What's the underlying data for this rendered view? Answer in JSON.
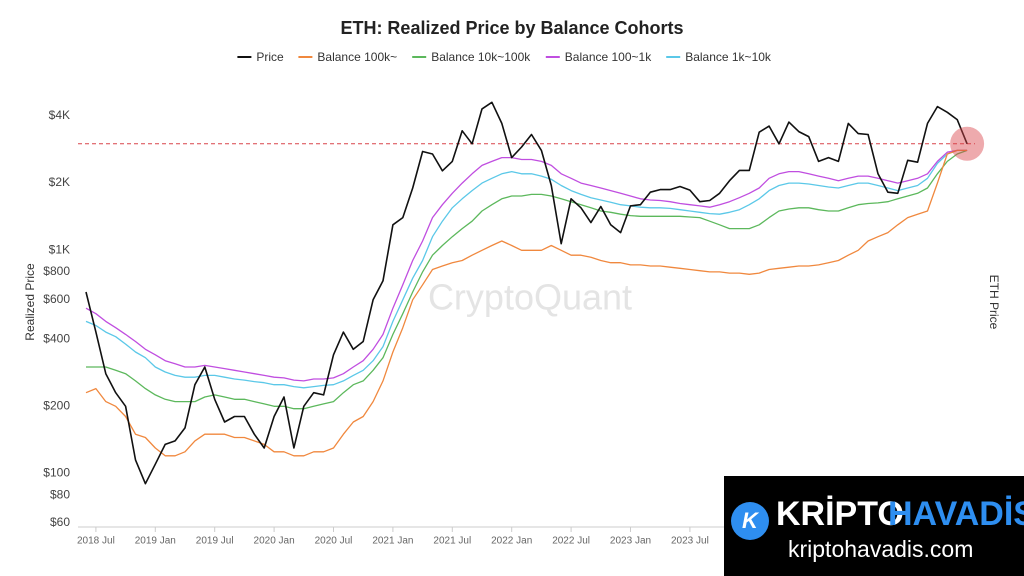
{
  "chart_data": {
    "type": "line",
    "title": "ETH: Realized Price by Balance Cohorts",
    "y_label": "Realized Price",
    "y2_label": "ETH Price",
    "watermark": "CryptoQuant",
    "log_scale": true,
    "grid": false,
    "legend": "top",
    "x": [
      "2018 Jun",
      "2018 Jul",
      "2018 Aug",
      "2018 Sep",
      "2018 Oct",
      "2018 Nov",
      "2018 Dec",
      "2019 Jan",
      "2019 Feb",
      "2019 Mar",
      "2019 Apr",
      "2019 May",
      "2019 Jun",
      "2019 Jul",
      "2019 Aug",
      "2019 Sep",
      "2019 Oct",
      "2019 Nov",
      "2019 Dec",
      "2020 Jan",
      "2020 Feb",
      "2020 Mar",
      "2020 Apr",
      "2020 May",
      "2020 Jun",
      "2020 Jul",
      "2020 Aug",
      "2020 Sep",
      "2020 Oct",
      "2020 Nov",
      "2020 Dec",
      "2021 Jan",
      "2021 Feb",
      "2021 Mar",
      "2021 Apr",
      "2021 May",
      "2021 Jun",
      "2021 Jul",
      "2021 Aug",
      "2021 Sep",
      "2021 Oct",
      "2021 Nov",
      "2021 Dec",
      "2022 Jan",
      "2022 Feb",
      "2022 Mar",
      "2022 Apr",
      "2022 May",
      "2022 Jun",
      "2022 Jul",
      "2022 Aug",
      "2022 Sep",
      "2022 Oct",
      "2022 Nov",
      "2022 Dec",
      "2023 Jan",
      "2023 Feb",
      "2023 Mar",
      "2023 Apr",
      "2023 May",
      "2023 Jun",
      "2023 Jul",
      "2023 Aug",
      "2023 Sep",
      "2023 Oct",
      "2023 Nov",
      "2023 Dec",
      "2024 Jan",
      "2024 Feb",
      "2024 Mar",
      "2024 Apr",
      "2024 May",
      "2024 Jun",
      "2024 Jul",
      "2024 Aug",
      "2024 Sep",
      "2024 Oct",
      "2024 Nov",
      "2024 Dec",
      "2025 Jan",
      "2025 Feb",
      "2025 Mar",
      "2025 Apr",
      "2025 May",
      "2025 Jun",
      "2025 Jul",
      "2025 Aug",
      "2025 Sep",
      "2025 Oct",
      "2025 Nov"
    ],
    "xticks": [
      "2018 Jul",
      "2019 Jan",
      "2019 Jul",
      "2020 Jan",
      "2020 Jul",
      "2021 Jan",
      "2021 Jul",
      "2022 Jan",
      "2022 Jul",
      "2023 Jan",
      "2023 Jul"
    ],
    "ylim": [
      60,
      5500
    ],
    "yticks": [
      {
        "value": 60,
        "label": "$60"
      },
      {
        "value": 80,
        "label": "$80"
      },
      {
        "value": 100,
        "label": "$100"
      },
      {
        "value": 200,
        "label": "$200"
      },
      {
        "value": 400,
        "label": "$400"
      },
      {
        "value": 600,
        "label": "$600"
      },
      {
        "value": 800,
        "label": "$800"
      },
      {
        "value": 1000,
        "label": "$1K"
      },
      {
        "value": 2000,
        "label": "$2K"
      },
      {
        "value": 4000,
        "label": "$4K"
      }
    ],
    "reference_line": {
      "value": 3000,
      "color": "#d9434a"
    },
    "series": [
      {
        "name": "Price",
        "color": "#111111",
        "values": [
          650,
          430,
          280,
          230,
          200,
          115,
          90,
          110,
          135,
          140,
          160,
          250,
          300,
          215,
          170,
          180,
          180,
          150,
          130,
          180,
          220,
          130,
          200,
          230,
          225,
          340,
          430,
          360,
          390,
          600,
          730,
          1300,
          1400,
          1900,
          2770,
          2700,
          2270,
          2500,
          3430,
          3000,
          4300,
          4600,
          3700,
          2600,
          2900,
          3300,
          2800,
          1950,
          1070,
          1700,
          1550,
          1330,
          1570,
          1300,
          1200,
          1580,
          1600,
          1820,
          1870,
          1870,
          1930,
          1860,
          1650,
          1670,
          1800,
          2050,
          2280,
          2280,
          3380,
          3600,
          3000,
          3750,
          3400,
          3230,
          2500,
          2600,
          2500,
          3700,
          3330,
          3300,
          2200,
          1820,
          1800,
          2530,
          2480,
          3700,
          4400,
          4150,
          3850,
          3000
        ]
      },
      {
        "name": "Balance 100k~",
        "color": "#f0883e",
        "values": [
          230,
          240,
          210,
          200,
          180,
          150,
          145,
          130,
          120,
          120,
          125,
          140,
          150,
          150,
          150,
          145,
          145,
          140,
          135,
          125,
          125,
          120,
          120,
          125,
          125,
          130,
          150,
          170,
          180,
          210,
          260,
          350,
          450,
          600,
          700,
          820,
          850,
          880,
          900,
          950,
          1000,
          1050,
          1100,
          1050,
          1000,
          1000,
          1000,
          1050,
          1000,
          950,
          950,
          930,
          900,
          880,
          880,
          860,
          860,
          850,
          850,
          840,
          830,
          820,
          810,
          800,
          800,
          790,
          790,
          780,
          790,
          820,
          830,
          840,
          850,
          850,
          860,
          880,
          900,
          950,
          1000,
          1100,
          1150,
          1200,
          1300,
          1400,
          1450,
          1500,
          2000,
          2700,
          2800,
          2800
        ]
      },
      {
        "name": "Balance 10k~100k",
        "color": "#5cb85c",
        "values": [
          300,
          300,
          300,
          290,
          280,
          260,
          240,
          225,
          215,
          210,
          210,
          210,
          220,
          225,
          220,
          215,
          215,
          210,
          205,
          200,
          200,
          195,
          195,
          200,
          205,
          210,
          230,
          250,
          260,
          290,
          330,
          420,
          520,
          650,
          800,
          950,
          1050,
          1150,
          1250,
          1350,
          1500,
          1600,
          1700,
          1750,
          1750,
          1780,
          1780,
          1750,
          1700,
          1650,
          1600,
          1550,
          1500,
          1480,
          1450,
          1430,
          1420,
          1420,
          1420,
          1420,
          1420,
          1410,
          1400,
          1350,
          1300,
          1250,
          1250,
          1250,
          1300,
          1400,
          1500,
          1530,
          1550,
          1550,
          1520,
          1500,
          1500,
          1550,
          1600,
          1620,
          1630,
          1650,
          1700,
          1750,
          1800,
          1900,
          2200,
          2500,
          2700,
          2800
        ]
      },
      {
        "name": "Balance 100~1k",
        "color": "#c04ee0",
        "values": [
          550,
          520,
          480,
          450,
          420,
          390,
          360,
          340,
          320,
          310,
          300,
          300,
          305,
          300,
          295,
          290,
          285,
          280,
          275,
          270,
          268,
          262,
          260,
          265,
          265,
          268,
          280,
          300,
          320,
          360,
          420,
          550,
          700,
          900,
          1100,
          1400,
          1600,
          1800,
          2000,
          2200,
          2400,
          2500,
          2600,
          2600,
          2550,
          2550,
          2500,
          2400,
          2200,
          2100,
          2000,
          1950,
          1900,
          1850,
          1800,
          1750,
          1700,
          1680,
          1670,
          1650,
          1620,
          1600,
          1580,
          1560,
          1600,
          1650,
          1720,
          1800,
          1900,
          2100,
          2200,
          2250,
          2250,
          2200,
          2150,
          2100,
          2050,
          2100,
          2150,
          2150,
          2100,
          2050,
          2000,
          2050,
          2100,
          2200,
          2500,
          2750,
          2800,
          2800
        ]
      },
      {
        "name": "Balance 1k~10k",
        "color": "#5bc8e8",
        "values": [
          480,
          460,
          430,
          410,
          380,
          350,
          330,
          300,
          285,
          275,
          270,
          270,
          275,
          275,
          270,
          265,
          262,
          258,
          255,
          250,
          250,
          245,
          242,
          245,
          248,
          250,
          260,
          275,
          290,
          320,
          370,
          480,
          600,
          750,
          900,
          1150,
          1350,
          1550,
          1700,
          1850,
          2000,
          2100,
          2200,
          2250,
          2200,
          2200,
          2150,
          2080,
          1950,
          1850,
          1780,
          1720,
          1680,
          1640,
          1600,
          1580,
          1560,
          1550,
          1550,
          1540,
          1520,
          1500,
          1480,
          1460,
          1450,
          1480,
          1520,
          1600,
          1700,
          1850,
          1950,
          2000,
          2000,
          1980,
          1950,
          1920,
          1900,
          1950,
          2000,
          2000,
          1950,
          1900,
          1850,
          1900,
          1950,
          2100,
          2450,
          2700,
          2800,
          2800
        ]
      }
    ]
  },
  "overlay": {
    "icon_letter": "K",
    "brand_left": "KRİPTO",
    "brand_right": "HAVADİS",
    "url": "kriptohavadis.com"
  }
}
